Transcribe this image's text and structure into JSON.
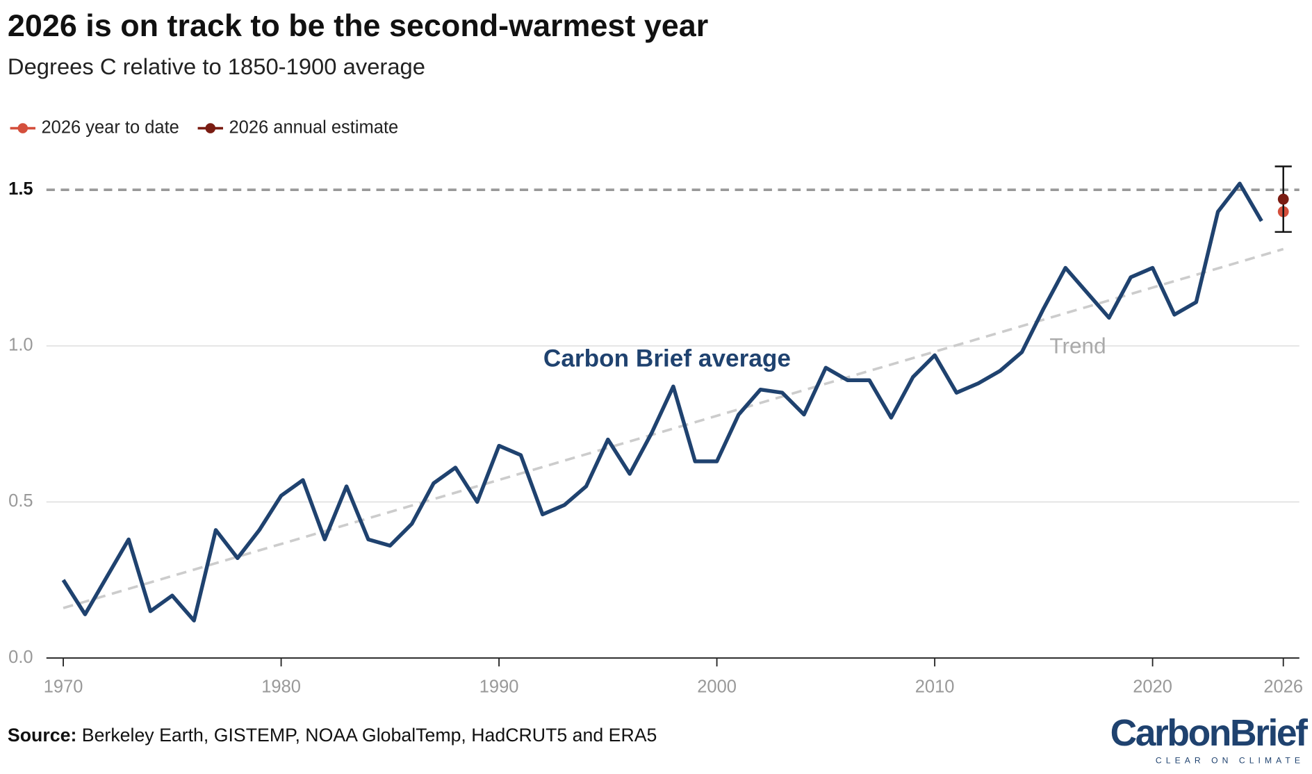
{
  "chart_data": {
    "type": "line",
    "title": "2026 is on track to be the second-warmest year",
    "subtitle": "Degrees C relative to 1850-1900 average",
    "source_label": "Source:",
    "source": "Berkeley Earth, GISTEMP, NOAA GlobalTemp, HadCRUT5 and ERA5",
    "logo": "CarbonBrief",
    "logo_tagline": "CLEAR ON CLIMATE",
    "xlim": [
      1970,
      2026
    ],
    "xticks": [
      1970,
      1980,
      1990,
      2000,
      2010,
      2020,
      2026
    ],
    "ylim": [
      0,
      1.5
    ],
    "yticks": [
      {
        "value": 0,
        "label": "0.0"
      },
      0.5,
      {
        "value": 1,
        "label": "1.0"
      },
      1.5
    ],
    "reference_lines": [
      1.5
    ],
    "grid": true,
    "series": [
      {
        "name": "Carbon Brief average",
        "color": "#1f426f",
        "style": "solid",
        "x": [
          1970,
          1971,
          1972,
          1973,
          1974,
          1975,
          1976,
          1977,
          1978,
          1979,
          1980,
          1981,
          1982,
          1983,
          1984,
          1985,
          1986,
          1987,
          1988,
          1989,
          1990,
          1991,
          1992,
          1993,
          1994,
          1995,
          1996,
          1997,
          1998,
          1999,
          2000,
          2001,
          2002,
          2003,
          2004,
          2005,
          2006,
          2007,
          2008,
          2009,
          2010,
          2011,
          2012,
          2013,
          2014,
          2015,
          2016,
          2017,
          2018,
          2019,
          2020,
          2021,
          2022,
          2023,
          2024,
          2025
        ],
        "values": [
          0.25,
          0.14,
          0.26,
          0.38,
          0.15,
          0.2,
          0.12,
          0.41,
          0.32,
          0.41,
          0.52,
          0.57,
          0.38,
          0.55,
          0.38,
          0.36,
          0.43,
          0.56,
          0.61,
          0.5,
          0.68,
          0.65,
          0.46,
          0.49,
          0.55,
          0.7,
          0.59,
          0.72,
          0.87,
          0.63,
          0.63,
          0.78,
          0.86,
          0.85,
          0.78,
          0.93,
          0.89,
          0.89,
          0.77,
          0.9,
          0.97,
          0.85,
          0.88,
          0.92,
          0.98,
          1.12,
          1.25,
          1.17,
          1.09,
          1.22,
          1.25,
          1.1,
          1.14,
          1.43,
          1.52,
          1.4
        ]
      },
      {
        "name": "Trend",
        "color": "#cccccc",
        "style": "dashed",
        "x": [
          1970,
          2026
        ],
        "values": [
          0.16,
          1.31
        ]
      }
    ],
    "points": [
      {
        "name": "2026 year to date",
        "color": "#d44f3c",
        "x": 2026,
        "value": 1.43
      },
      {
        "name": "2026 annual estimate",
        "color": "#7a1c12",
        "x": 2026,
        "value": 1.47,
        "error": 0.105
      }
    ]
  }
}
